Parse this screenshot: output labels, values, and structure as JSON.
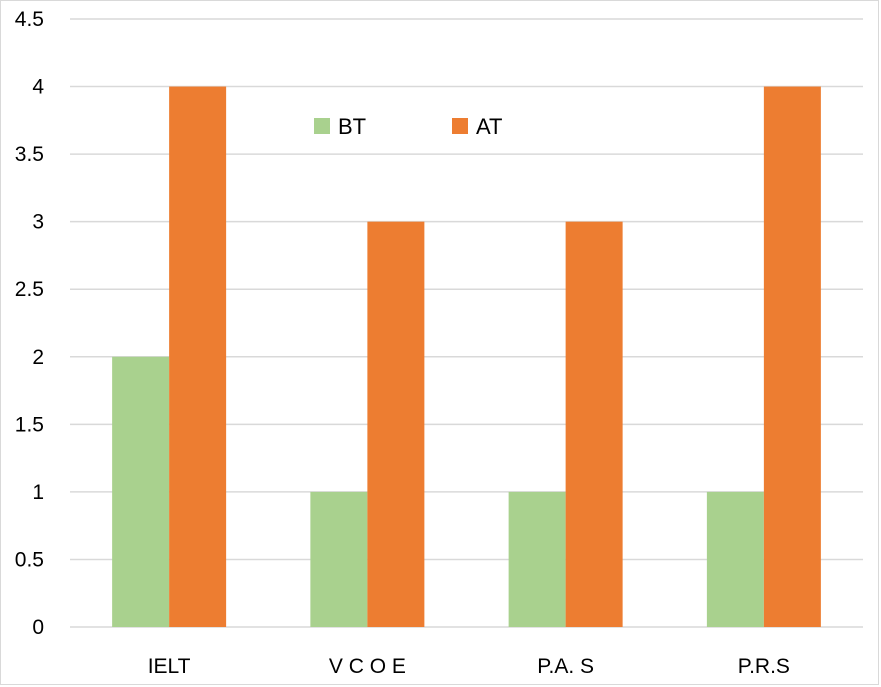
{
  "chart_data": {
    "type": "bar",
    "categories": [
      "IELT",
      "V C O E",
      "P.A. S",
      "P.R.S"
    ],
    "series": [
      {
        "name": "BT",
        "values": [
          2,
          1,
          1,
          1
        ],
        "color": "#a9d18e"
      },
      {
        "name": "AT",
        "values": [
          4,
          3,
          3,
          4
        ],
        "color": "#ed7d31"
      }
    ],
    "title": "",
    "xlabel": "",
    "ylabel": "",
    "ylim": [
      0,
      4.5
    ],
    "yticks": [
      "0",
      "0.5",
      "1",
      "1.5",
      "2",
      "2.5",
      "3",
      "3.5",
      "4",
      "4.5"
    ],
    "grid": true,
    "gridline_color": "#d9d9d9",
    "legend_placement": "top-center"
  }
}
